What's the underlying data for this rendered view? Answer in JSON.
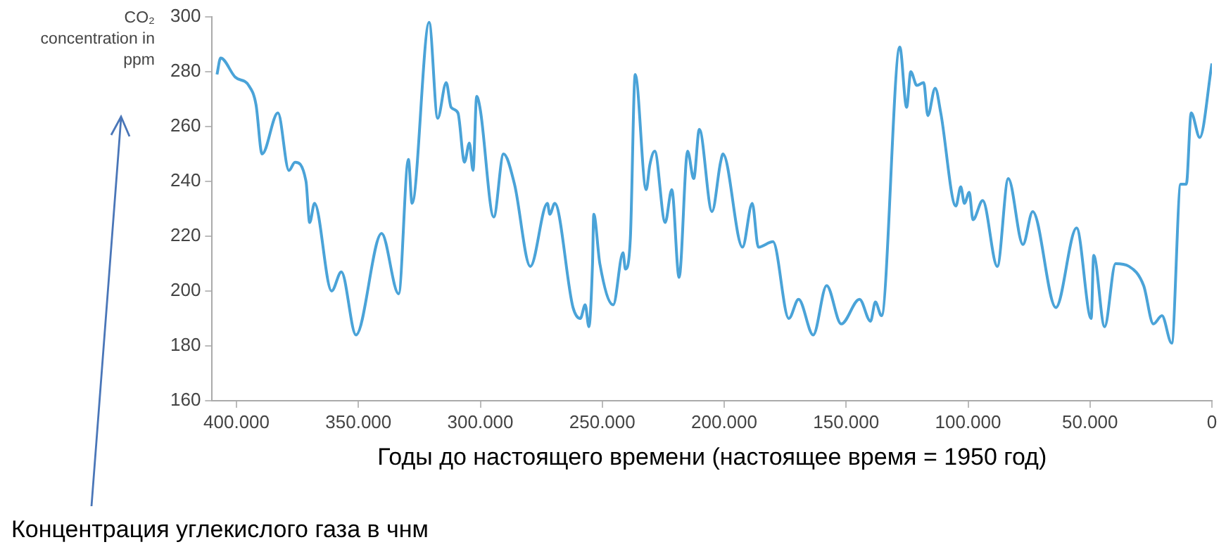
{
  "chart_data": {
    "type": "line",
    "ylabel": "CO₂ concentration in ppm",
    "xlabel": "Годы до настоящего времени (настоящее время = 1950 год)",
    "annotations": [
      "Концентрация углекислого газа в чнм"
    ],
    "xlim": [
      410000,
      0
    ],
    "xticks": [
      {
        "value": 400000,
        "label": "400.000"
      },
      {
        "value": 350000,
        "label": "350.000"
      },
      {
        "value": 300000,
        "label": "300.000"
      },
      {
        "value": 250000,
        "label": "250.000"
      },
      {
        "value": 200000,
        "label": "200.000"
      },
      {
        "value": 150000,
        "label": "150.000"
      },
      {
        "value": 100000,
        "label": "100.000"
      },
      {
        "value": 50000,
        "label": "50.000"
      },
      0
    ],
    "ylim": [
      160,
      300
    ],
    "yticks": [
      160,
      180,
      200,
      220,
      240,
      260,
      280,
      300
    ],
    "grid": false,
    "legend": false,
    "marker": "none",
    "series": [
      {
        "color": "#4aa3d8",
        "x": [
          408000,
          406500,
          400500,
          395000,
          392000,
          389500,
          383000,
          378500,
          376000,
          371500,
          370000,
          368000,
          361000,
          357000,
          351000,
          340500,
          333500,
          329500,
          328000,
          321000,
          317500,
          314000,
          312000,
          309200,
          306500,
          304500,
          303000,
          301500,
          300000,
          294500,
          290500,
          286000,
          279500,
          272500,
          271500,
          269500,
          262000,
          259000,
          257000,
          255500,
          254000,
          253500,
          251000,
          245500,
          241500,
          240500,
          238500,
          236500,
          232000,
          230500,
          228500,
          224200,
          221500,
          218500,
          215000,
          212500,
          210200,
          205000,
          201500,
          200500,
          192500,
          188500,
          186000,
          180000,
          173500,
          169500,
          163500,
          158000,
          152000,
          144500,
          140000,
          138000,
          135500,
          128000,
          125200,
          123500,
          121000,
          118200,
          116500,
          113500,
          111200,
          105000,
          103000,
          101500,
          99500,
          98000,
          94000,
          88000,
          83500,
          77500,
          73500,
          64000,
          55500,
          49500,
          48500,
          44000,
          39500,
          34000,
          28000,
          24000,
          20500,
          16500,
          12800,
          10500,
          8500,
          5000,
          0
        ],
        "values": [
          279,
          285,
          278,
          275,
          268,
          250,
          265,
          244,
          247,
          240,
          225,
          232,
          200,
          207,
          184,
          221,
          199,
          248,
          232,
          298,
          263,
          276,
          267,
          265,
          247,
          254,
          244,
          271,
          266,
          227,
          250,
          239,
          209,
          232,
          228,
          232,
          194,
          190,
          195,
          187,
          210,
          228,
          210,
          195,
          214,
          208,
          219,
          279,
          237,
          246,
          251,
          225,
          237,
          205,
          251,
          241,
          259,
          229,
          247,
          250,
          216,
          232,
          216,
          218,
          190,
          197,
          184,
          202,
          188,
          197,
          189,
          196,
          191,
          289,
          267,
          280,
          275,
          276,
          264,
          274,
          265,
          231,
          238,
          232,
          236,
          226,
          233,
          209,
          241,
          217,
          229,
          194,
          223,
          190,
          213,
          187,
          210,
          209,
          202,
          188,
          191,
          181,
          239,
          239,
          265,
          256,
          283
        ]
      }
    ]
  }
}
